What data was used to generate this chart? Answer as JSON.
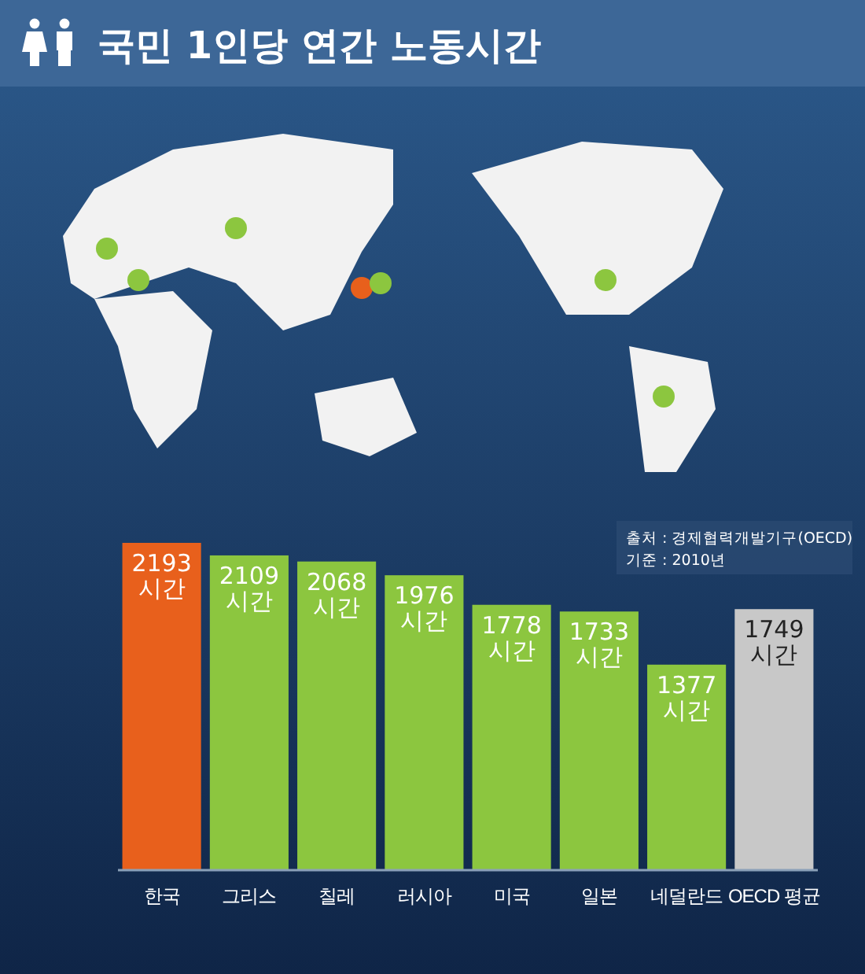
{
  "chart_data": {
    "type": "bar",
    "title": "국민 1인당 연간 노동시간",
    "categories": [
      "한국",
      "그리스",
      "칠레",
      "러시아",
      "미국",
      "일본",
      "네덜란드",
      "OECD 평균"
    ],
    "values": [
      2193,
      2109,
      2068,
      1976,
      1778,
      1733,
      1377,
      1749
    ],
    "colors": [
      "#e8601c",
      "#8cc63f",
      "#8cc63f",
      "#8cc63f",
      "#8cc63f",
      "#8cc63f",
      "#8cc63f",
      "#c8c8c8"
    ],
    "value_labels": [
      "2193 시간",
      "2109 시간",
      "2068 시간",
      "1976 시간",
      "1778 시간",
      "1733 시간",
      "1377 시간",
      "1749 시간"
    ],
    "annotations": [
      "출처 : 경제협력개발기구(OECD)",
      "기준 : 2010년"
    ]
  }
}
